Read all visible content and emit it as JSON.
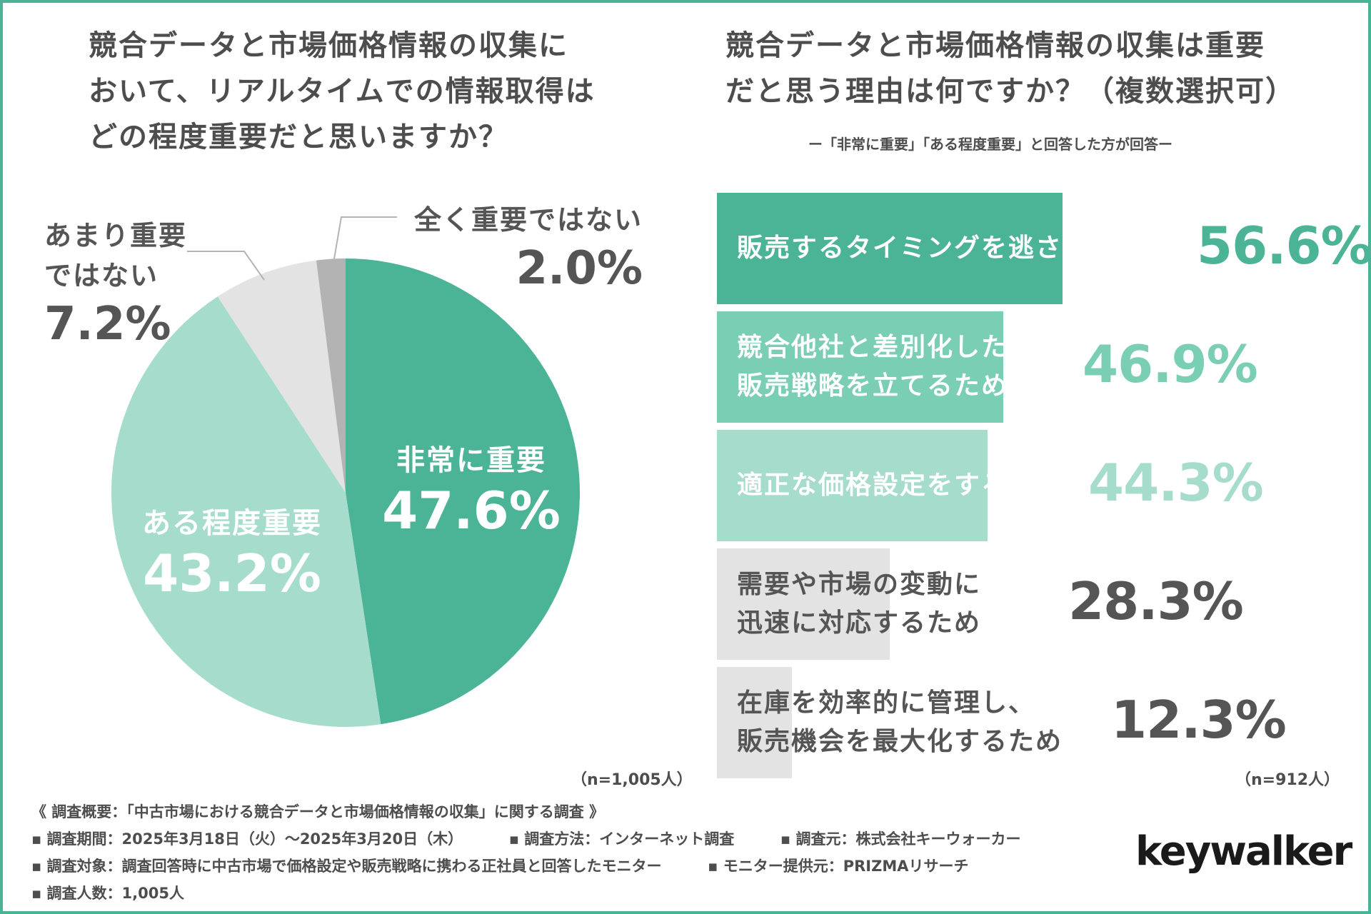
{
  "left_question": "競合データと市場価格情報の収集に\nおいて、リアルタイムでの情報取得は\nどの程度重要だと思いますか？",
  "right_question": "競合データと市場価格情報の収集は重要\nだと思う理由は何ですか？（複数選択可）",
  "right_subnote": "ー「非常に重要」「ある程度重要」と回答した方が回答ー",
  "left_n": "（n=1,005人）",
  "right_n": "（n=912人）",
  "pie_labels": {
    "very_label": "非常に重要",
    "very_pct": "47.6%",
    "some_label": "ある程度重要",
    "some_pct": "43.2%",
    "notmuch_label": "あまり重要\nではない",
    "notmuch_pct": "7.2%",
    "notatall_label": "全く重要ではない",
    "notatall_pct": "2.0%"
  },
  "bar_labels": [
    {
      "label": "販売するタイミングを逃さないため",
      "value": "56.6%"
    },
    {
      "label": "競合他社と差別化した\n販売戦略を立てるため",
      "value": "46.9%"
    },
    {
      "label": "適正な価格設定をするため",
      "value": "44.3%"
    },
    {
      "label": "需要や市場の変動に\n迅速に対応するため",
      "value": "28.3%"
    },
    {
      "label": "在庫を効率的に管理し、\n販売機会を最大化するため",
      "value": "12.3%"
    }
  ],
  "footer": {
    "line1": "《 調査概要：「中古市場における競合データと市場価格情報の収集」に関する調査 》",
    "period": "▪ 調査期間：2025年3月18日（火）〜2025年3月20日（木）",
    "method": "▪ 調査方法：インターネット調査",
    "source": "▪ 調査元：株式会社キーウォーカー",
    "target": "▪ 調査対象：調査回答時に中古市場で価格設定や販売戦略に携わる正社員と回答したモニター",
    "provider": "▪ モニター提供元：PRIZMAリサーチ",
    "count": "▪ 調査人数：1,005人"
  },
  "logo": "keywalker",
  "colors": {
    "very": "#4bb396",
    "some": "#a6dccb",
    "notmuch": "#e3e3e3",
    "notatall": "#b3b3b3",
    "bar1": "#4bb396",
    "bar2": "#79ceb3",
    "bar3": "#a6dccb",
    "bar4": "#e3e3e3",
    "bar5": "#e3e3e3"
  },
  "chart_data": [
    {
      "type": "pie",
      "title": "競合データと市場価格情報の収集において、リアルタイムでの情報取得はどの程度重要だと思いますか？",
      "categories": [
        "非常に重要",
        "ある程度重要",
        "あまり重要ではない",
        "全く重要ではない"
      ],
      "values": [
        47.6,
        43.2,
        7.2,
        2.0
      ],
      "unit": "%",
      "n": "n=1,005人"
    },
    {
      "type": "bar",
      "orientation": "horizontal",
      "title": "競合データと市場価格情報の収集は重要だと思う理由は何ですか？（複数選択可）",
      "categories": [
        "販売するタイミングを逃さないため",
        "競合他社と差別化した販売戦略を立てるため",
        "適正な価格設定をするため",
        "需要や市場の変動に迅速に対応するため",
        "在庫を効率的に管理し、販売機会を最大化するため"
      ],
      "values": [
        56.6,
        46.9,
        44.3,
        28.3,
        12.3
      ],
      "unit": "%",
      "xlim": [
        0,
        100
      ],
      "n": "n=912人"
    }
  ]
}
